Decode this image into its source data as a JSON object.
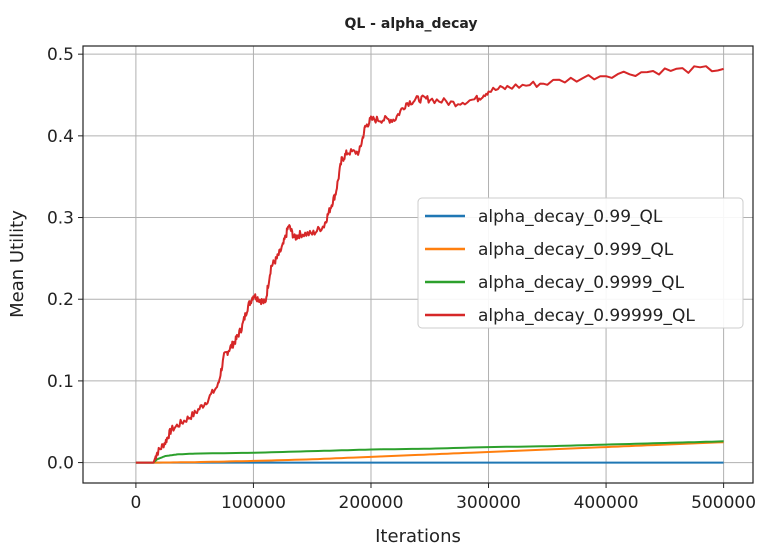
{
  "chart_data": {
    "type": "line",
    "title": "QL - alpha_decay",
    "xlabel": "Iterations",
    "ylabel": "Mean Utility",
    "xlim": [
      -45000,
      525000
    ],
    "ylim": [
      -0.025,
      0.51
    ],
    "xticks": [
      0,
      100000,
      200000,
      300000,
      400000,
      500000
    ],
    "yticks": [
      0.0,
      0.1,
      0.2,
      0.3,
      0.4,
      0.5
    ],
    "xtick_labels": [
      "0",
      "100000",
      "200000",
      "300000",
      "400000",
      "500000"
    ],
    "ytick_labels": [
      "0.0",
      "0.1",
      "0.2",
      "0.3",
      "0.4",
      "0.5"
    ],
    "grid": true,
    "legend_position": "center-right",
    "series": [
      {
        "name": "alpha_decay_0.99_QL",
        "color": "#1f77b4",
        "x": [
          0,
          100000,
          200000,
          300000,
          400000,
          500000
        ],
        "y": [
          0.0,
          0.0,
          0.0,
          0.0,
          0.0,
          0.0
        ]
      },
      {
        "name": "alpha_decay_0.999_QL",
        "color": "#ff7f0e",
        "x": [
          0,
          20000,
          50000,
          100000,
          150000,
          200000,
          250000,
          300000,
          350000,
          400000,
          450000,
          500000
        ],
        "y": [
          0.0,
          0.0,
          0.0005,
          0.002,
          0.004,
          0.007,
          0.01,
          0.013,
          0.016,
          0.019,
          0.022,
          0.025
        ]
      },
      {
        "name": "alpha_decay_0.9999_QL",
        "color": "#2ca02c",
        "x": [
          0,
          15000,
          18000,
          25000,
          35000,
          50000,
          100000,
          150000,
          200000,
          250000,
          300000,
          350000,
          400000,
          450000,
          500000
        ],
        "y": [
          0.0,
          0.0,
          0.004,
          0.008,
          0.01,
          0.011,
          0.012,
          0.014,
          0.016,
          0.017,
          0.019,
          0.02,
          0.022,
          0.024,
          0.026
        ]
      },
      {
        "name": "alpha_decay_0.99999_QL",
        "color": "#d62728",
        "x": [
          0,
          15000,
          18000,
          25000,
          30000,
          40000,
          50000,
          60000,
          70000,
          75000,
          80000,
          85000,
          90000,
          95000,
          100000,
          105000,
          110000,
          115000,
          120000,
          125000,
          130000,
          135000,
          140000,
          150000,
          160000,
          165000,
          170000,
          175000,
          180000,
          190000,
          195000,
          200000,
          210000,
          220000,
          230000,
          240000,
          250000,
          270000,
          290000,
          300000,
          320000,
          350000,
          400000,
          450000,
          500000
        ],
        "y": [
          0.0,
          0.0,
          0.012,
          0.025,
          0.04,
          0.05,
          0.06,
          0.075,
          0.095,
          0.13,
          0.14,
          0.15,
          0.165,
          0.19,
          0.205,
          0.2,
          0.195,
          0.24,
          0.25,
          0.265,
          0.29,
          0.275,
          0.28,
          0.28,
          0.29,
          0.31,
          0.33,
          0.37,
          0.38,
          0.38,
          0.41,
          0.42,
          0.42,
          0.42,
          0.44,
          0.445,
          0.445,
          0.44,
          0.445,
          0.455,
          0.46,
          0.465,
          0.475,
          0.48,
          0.482
        ]
      }
    ]
  }
}
